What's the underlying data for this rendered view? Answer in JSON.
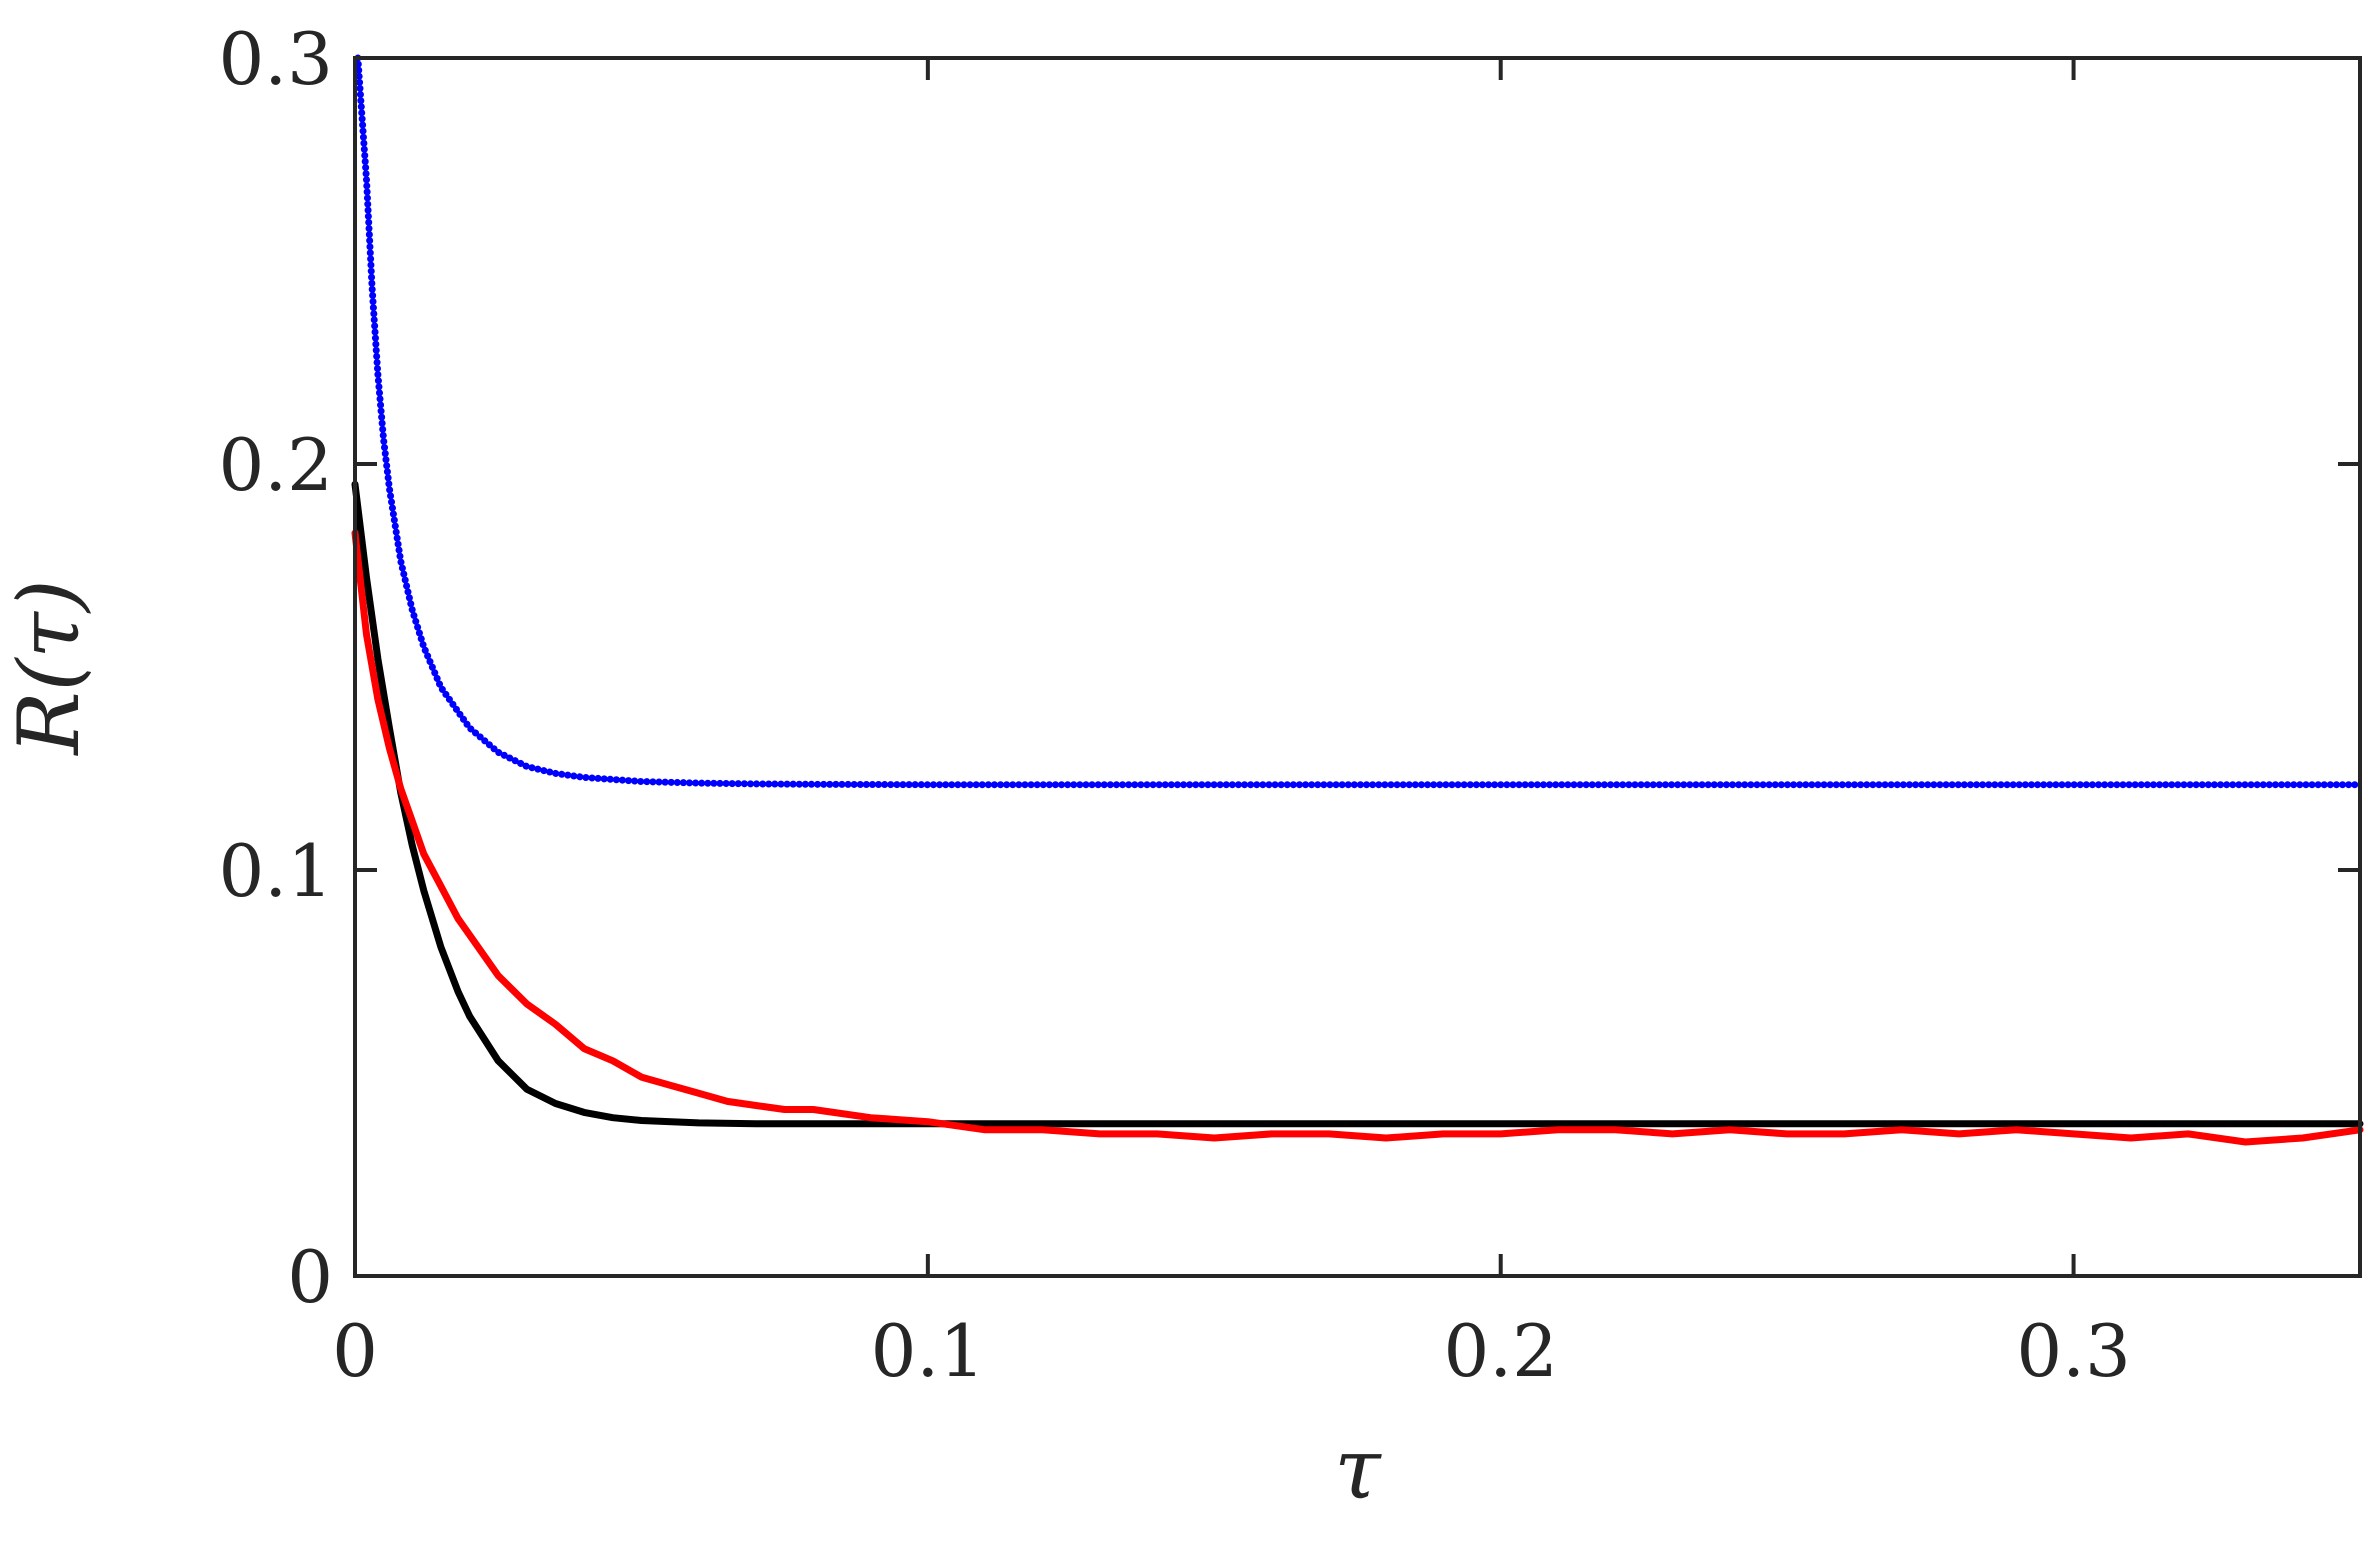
{
  "chart_data": {
    "type": "line",
    "xlabel": "τ",
    "ylabel": "R(τ)",
    "xlim": [
      0,
      0.35
    ],
    "ylim": [
      0,
      0.3
    ],
    "xticks": [
      0,
      0.1,
      0.2,
      0.3
    ],
    "xtick_labels": [
      "0",
      "0.1",
      "0.2",
      "0.3"
    ],
    "yticks": [
      0,
      0.1,
      0.2,
      0.3
    ],
    "ytick_labels": [
      "0",
      "0.1",
      "0.2",
      "0.3"
    ],
    "grid": false,
    "legend": "none",
    "series": [
      {
        "color": "#0000ff",
        "style": "dotted",
        "x": [
          0.0005,
          0.001,
          0.002,
          0.003,
          0.004,
          0.005,
          0.006,
          0.008,
          0.01,
          0.012,
          0.015,
          0.018,
          0.02,
          0.025,
          0.03,
          0.035,
          0.04,
          0.05,
          0.06,
          0.07,
          0.08,
          0.1,
          0.15,
          0.2,
          0.25,
          0.3,
          0.35
        ],
        "y": [
          0.3,
          0.29,
          0.27,
          0.243,
          0.222,
          0.206,
          0.194,
          0.176,
          0.164,
          0.155,
          0.145,
          0.139,
          0.135,
          0.129,
          0.1255,
          0.1238,
          0.1228,
          0.1218,
          0.1214,
          0.1212,
          0.1211,
          0.121,
          0.121,
          0.121,
          0.121,
          0.121,
          0.121
        ]
      },
      {
        "color": "#000000",
        "style": "solid",
        "x": [
          0.0,
          0.002,
          0.004,
          0.006,
          0.008,
          0.01,
          0.012,
          0.015,
          0.018,
          0.02,
          0.025,
          0.03,
          0.035,
          0.04,
          0.045,
          0.05,
          0.06,
          0.07,
          0.08,
          0.1,
          0.15,
          0.2,
          0.25,
          0.3,
          0.35
        ],
        "y": [
          0.195,
          0.172,
          0.152,
          0.135,
          0.119,
          0.106,
          0.095,
          0.081,
          0.07,
          0.064,
          0.053,
          0.046,
          0.0425,
          0.0403,
          0.039,
          0.0383,
          0.0377,
          0.0375,
          0.0375,
          0.0375,
          0.0375,
          0.0375,
          0.0375,
          0.0375,
          0.0375
        ]
      },
      {
        "color": "#ff0000",
        "style": "solid",
        "x": [
          0.0,
          0.002,
          0.004,
          0.006,
          0.008,
          0.01,
          0.012,
          0.015,
          0.018,
          0.02,
          0.025,
          0.03,
          0.035,
          0.04,
          0.045,
          0.05,
          0.055,
          0.06,
          0.065,
          0.07,
          0.075,
          0.08,
          0.09,
          0.1,
          0.11,
          0.12,
          0.13,
          0.14,
          0.15,
          0.16,
          0.17,
          0.18,
          0.19,
          0.2,
          0.21,
          0.22,
          0.23,
          0.24,
          0.25,
          0.26,
          0.27,
          0.28,
          0.29,
          0.3,
          0.31,
          0.32,
          0.33,
          0.34,
          0.35
        ],
        "y": [
          0.183,
          0.158,
          0.142,
          0.13,
          0.12,
          0.112,
          0.104,
          0.096,
          0.088,
          0.084,
          0.074,
          0.067,
          0.062,
          0.056,
          0.053,
          0.049,
          0.047,
          0.045,
          0.043,
          0.042,
          0.041,
          0.041,
          0.039,
          0.038,
          0.036,
          0.036,
          0.035,
          0.035,
          0.034,
          0.035,
          0.035,
          0.034,
          0.035,
          0.035,
          0.036,
          0.036,
          0.035,
          0.036,
          0.035,
          0.035,
          0.036,
          0.035,
          0.036,
          0.035,
          0.034,
          0.035,
          0.033,
          0.034,
          0.036
        ]
      }
    ]
  }
}
